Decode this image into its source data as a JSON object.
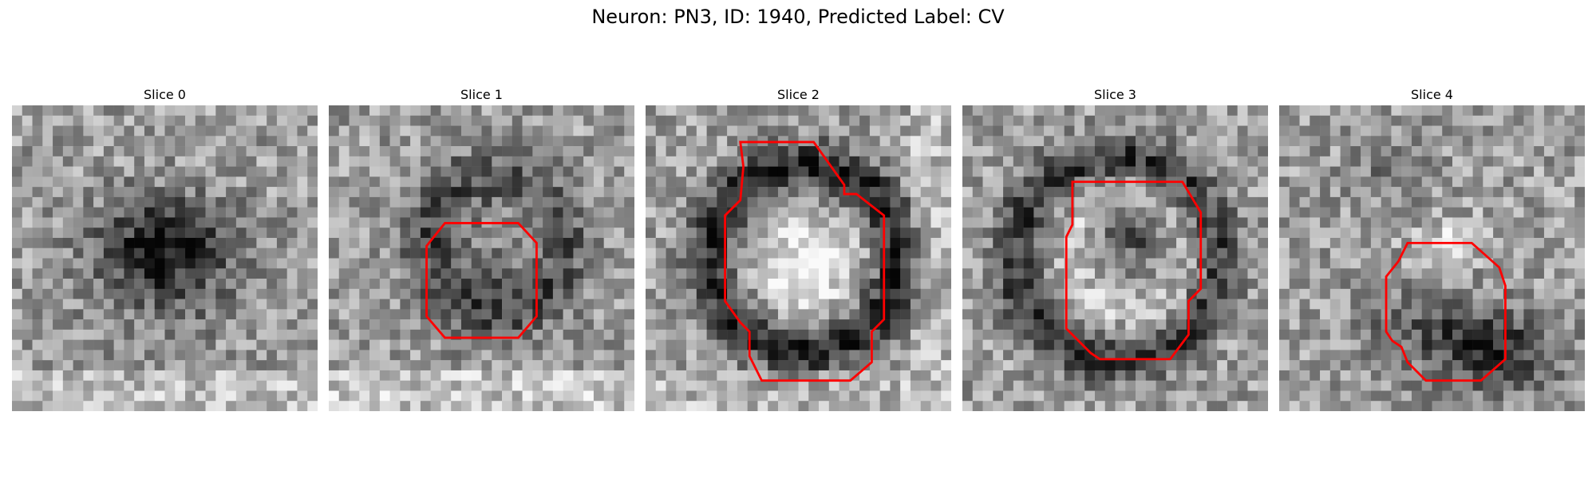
{
  "suptitle": "Neuron: PN3, ID: 1940, Predicted Label: CV",
  "contour_color": "#ff0000",
  "image_style": "grayscale noisy microscopy patch",
  "slices": [
    {
      "title": "Slice 0",
      "pattern": "dark-blob-center",
      "contour": []
    },
    {
      "title": "Slice 1",
      "pattern": "dark-diffuse-ring",
      "contour": [
        [
          0.38,
          0.385
        ],
        [
          0.62,
          0.385
        ],
        [
          0.68,
          0.45
        ],
        [
          0.68,
          0.69
        ],
        [
          0.62,
          0.76
        ],
        [
          0.38,
          0.76
        ],
        [
          0.32,
          0.69
        ],
        [
          0.32,
          0.46
        ]
      ]
    },
    {
      "title": "Slice 2",
      "pattern": "dark-ring-bright-core",
      "contour": [
        [
          0.31,
          0.12
        ],
        [
          0.55,
          0.12
        ],
        [
          0.65,
          0.26
        ],
        [
          0.65,
          0.29
        ],
        [
          0.69,
          0.29
        ],
        [
          0.78,
          0.36
        ],
        [
          0.78,
          0.7
        ],
        [
          0.74,
          0.74
        ],
        [
          0.74,
          0.84
        ],
        [
          0.67,
          0.9
        ],
        [
          0.38,
          0.9
        ],
        [
          0.34,
          0.82
        ],
        [
          0.34,
          0.74
        ],
        [
          0.31,
          0.71
        ],
        [
          0.26,
          0.64
        ],
        [
          0.26,
          0.36
        ],
        [
          0.31,
          0.31
        ],
        [
          0.32,
          0.2
        ]
      ]
    },
    {
      "title": "Slice 3",
      "pattern": "dark-ring-dark-core",
      "contour": [
        [
          0.36,
          0.25
        ],
        [
          0.72,
          0.25
        ],
        [
          0.78,
          0.35
        ],
        [
          0.78,
          0.6
        ],
        [
          0.74,
          0.64
        ],
        [
          0.74,
          0.75
        ],
        [
          0.68,
          0.83
        ],
        [
          0.45,
          0.83
        ],
        [
          0.42,
          0.81
        ],
        [
          0.34,
          0.73
        ],
        [
          0.34,
          0.43
        ],
        [
          0.36,
          0.39
        ]
      ]
    },
    {
      "title": "Slice 4",
      "pattern": "dark-lower-right-blob",
      "contour": [
        [
          0.42,
          0.45
        ],
        [
          0.63,
          0.45
        ],
        [
          0.72,
          0.53
        ],
        [
          0.74,
          0.59
        ],
        [
          0.74,
          0.83
        ],
        [
          0.66,
          0.9
        ],
        [
          0.48,
          0.9
        ],
        [
          0.42,
          0.84
        ],
        [
          0.4,
          0.79
        ],
        [
          0.37,
          0.77
        ],
        [
          0.35,
          0.74
        ],
        [
          0.35,
          0.56
        ],
        [
          0.39,
          0.51
        ]
      ]
    }
  ]
}
